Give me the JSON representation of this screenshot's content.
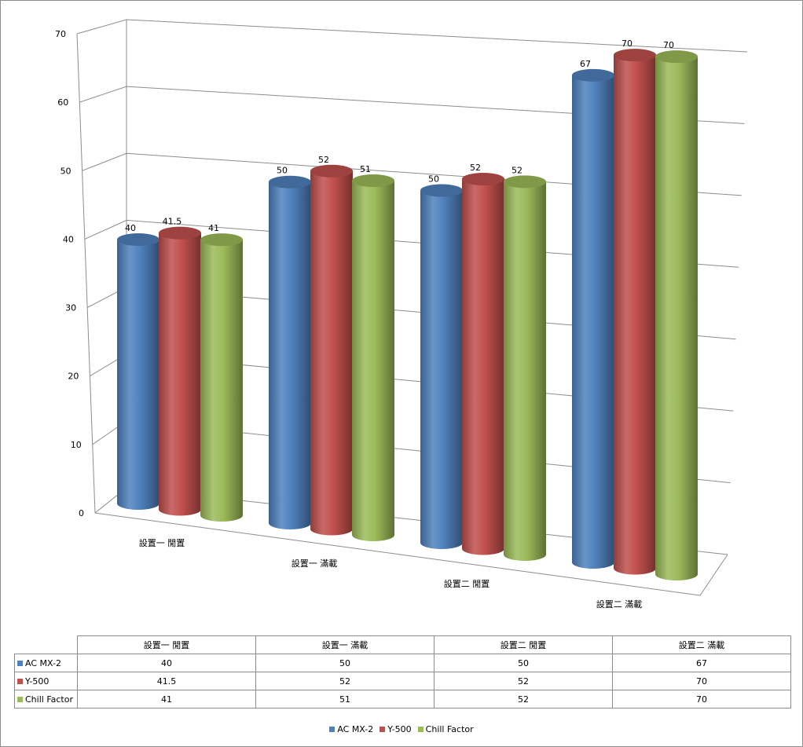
{
  "chart_data": {
    "type": "bar",
    "subtype": "3d-cylinder",
    "categories": [
      "設置一 閒置",
      "設置一 滿載",
      "設置二 閒置",
      "設置二 滿載"
    ],
    "series": [
      {
        "name": "AC MX-2",
        "color": "#4f81bd",
        "values": [
          40,
          50,
          50,
          67
        ]
      },
      {
        "name": "Y-500",
        "color": "#c0504d",
        "values": [
          41.5,
          52,
          52,
          70
        ]
      },
      {
        "name": "Chill Factor",
        "color": "#9bbb59",
        "values": [
          41,
          51,
          52,
          70
        ]
      }
    ],
    "ylim": [
      0,
      70
    ],
    "yticks": [
      0,
      10,
      20,
      30,
      40,
      50,
      60,
      70
    ],
    "grid": true,
    "legend": "bottom",
    "data_table": true
  }
}
